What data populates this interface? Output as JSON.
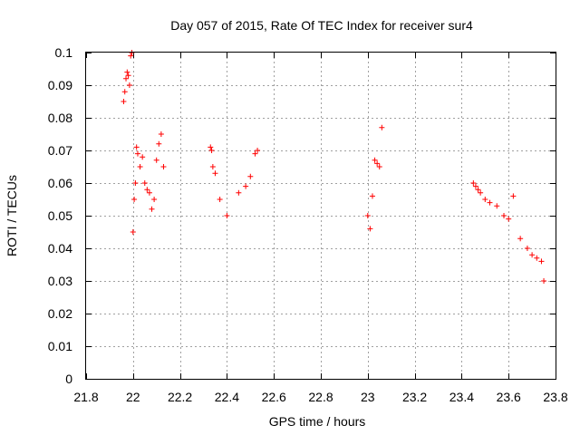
{
  "chart_data": {
    "type": "scatter",
    "title": "Day 057 of 2015, Rate Of TEC Index for receiver sur4",
    "xlabel": "GPS time / hours",
    "ylabel": "ROTI / TECUs",
    "xlim": [
      21.8,
      23.8
    ],
    "ylim": [
      0,
      0.1
    ],
    "xticks": [
      "21.8",
      "22",
      "22.2",
      "22.4",
      "22.6",
      "22.8",
      "23",
      "23.2",
      "23.4",
      "23.6",
      "23.8"
    ],
    "yticks": [
      "0",
      "0.01",
      "0.02",
      "0.03",
      "0.04",
      "0.05",
      "0.06",
      "0.07",
      "0.08",
      "0.09",
      "0.1"
    ],
    "grid": true,
    "marker": "+",
    "color": "#ff0000",
    "series": [
      {
        "x": [
          21.96,
          21.965,
          21.97,
          21.975,
          21.98,
          21.985,
          21.99,
          21.995,
          22.0,
          22.005,
          22.01,
          22.015,
          22.02,
          22.03,
          22.04,
          22.05,
          22.06,
          22.07,
          22.08,
          22.09,
          22.1,
          22.11,
          22.12,
          22.13,
          22.33,
          22.335,
          22.34,
          22.35,
          22.37,
          22.4,
          22.45,
          22.48,
          22.5,
          22.52,
          22.53,
          23.0,
          23.01,
          23.02,
          23.03,
          23.04,
          23.05,
          23.06,
          23.45,
          23.46,
          23.47,
          23.48,
          23.5,
          23.52,
          23.55,
          23.58,
          23.6,
          23.62,
          23.65,
          23.68,
          23.7,
          23.72,
          23.74,
          23.75
        ],
        "y": [
          0.085,
          0.088,
          0.092,
          0.094,
          0.093,
          0.09,
          0.099,
          0.1,
          0.045,
          0.055,
          0.06,
          0.071,
          0.069,
          0.065,
          0.068,
          0.06,
          0.058,
          0.057,
          0.052,
          0.055,
          0.067,
          0.072,
          0.075,
          0.065,
          0.071,
          0.07,
          0.065,
          0.063,
          0.055,
          0.05,
          0.057,
          0.059,
          0.062,
          0.069,
          0.07,
          0.05,
          0.046,
          0.056,
          0.067,
          0.066,
          0.065,
          0.077,
          0.06,
          0.059,
          0.058,
          0.057,
          0.055,
          0.054,
          0.053,
          0.05,
          0.049,
          0.056,
          0.043,
          0.04,
          0.038,
          0.037,
          0.036,
          0.03
        ]
      }
    ]
  }
}
